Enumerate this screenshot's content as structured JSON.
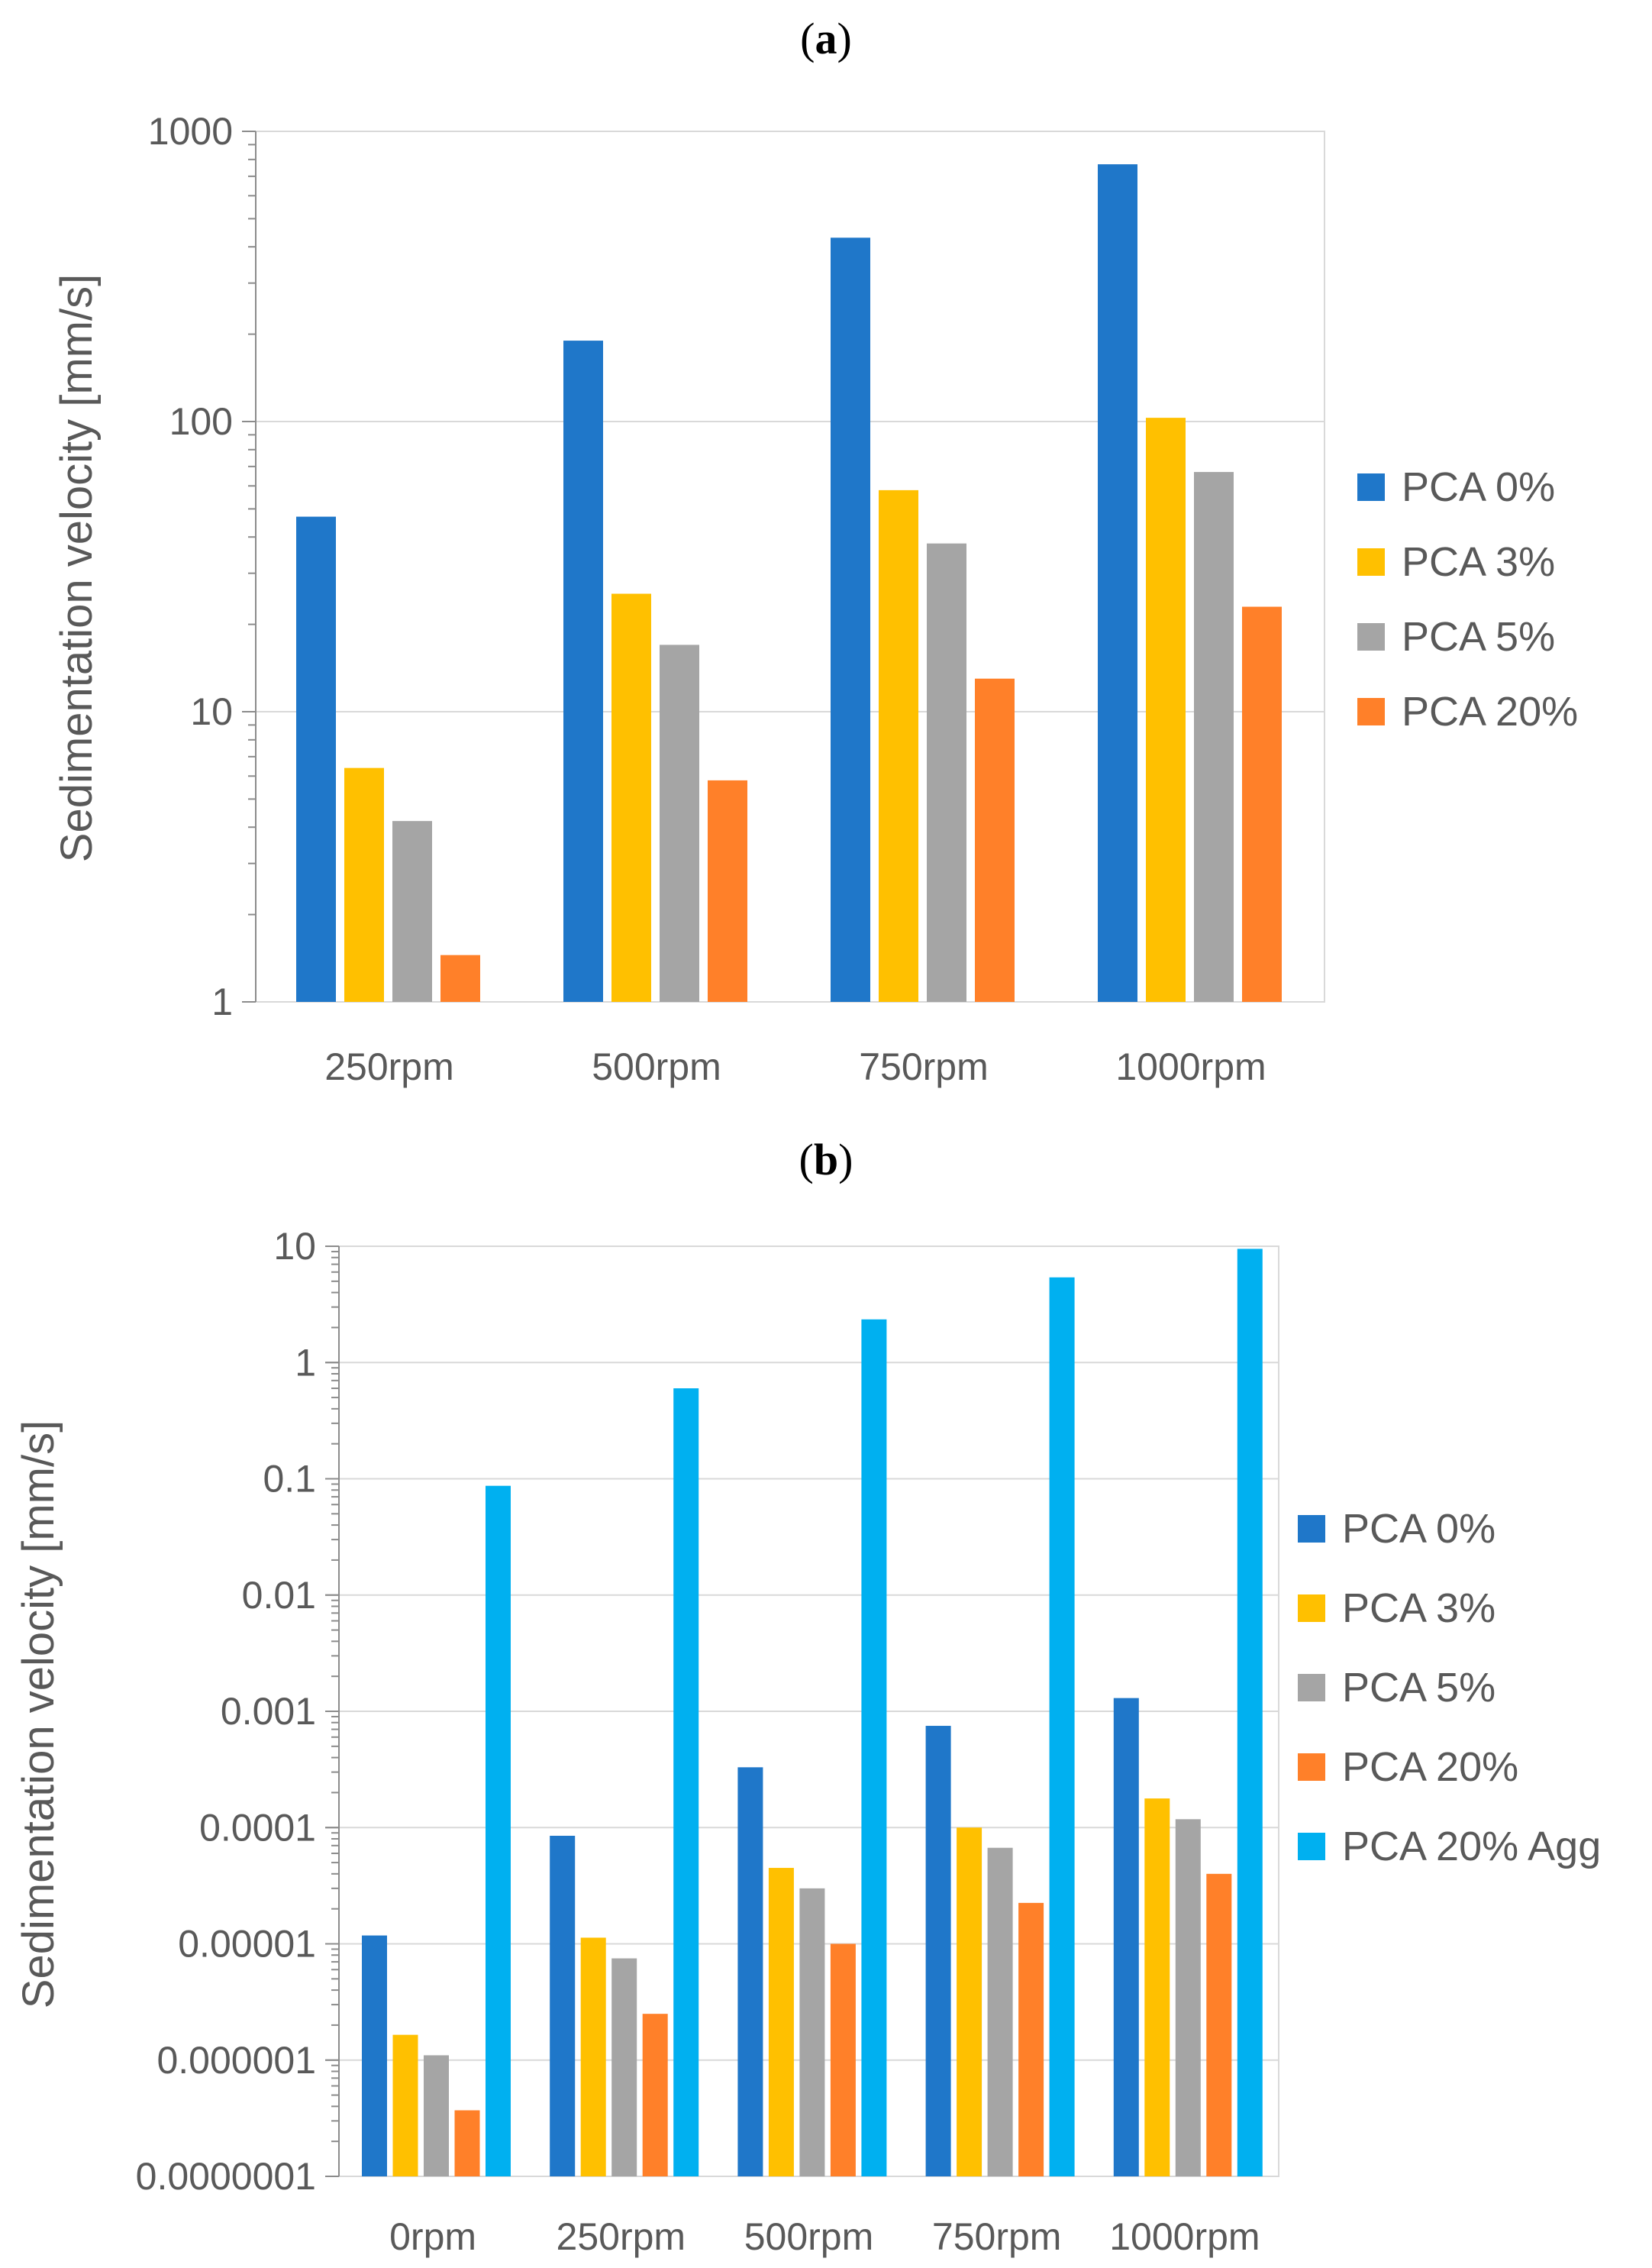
{
  "chart_data": [
    {
      "panel_label": "a",
      "type": "bar",
      "ylabel": "Sedimentation velocity [mm/s]",
      "xlabel": "",
      "yscale": "log",
      "ylim": [
        1,
        1000
      ],
      "ytick_labels": [
        "1",
        "10",
        "100",
        "1000"
      ],
      "ytick_values": [
        1,
        10,
        100,
        1000
      ],
      "categories": [
        "250rpm",
        "500rpm",
        "750rpm",
        "1000rpm"
      ],
      "series": [
        {
          "name": "PCA 0%",
          "color": "#1f77c9",
          "values": [
            47,
            190,
            430,
            770
          ]
        },
        {
          "name": "PCA 3%",
          "color": "#ffc000",
          "values": [
            6.4,
            25.5,
            58,
            103
          ]
        },
        {
          "name": "PCA 5%",
          "color": "#a5a5a5",
          "values": [
            4.2,
            17,
            38,
            67
          ]
        },
        {
          "name": "PCA 20%",
          "color": "#ff8029",
          "values": [
            1.45,
            5.8,
            13,
            23
          ]
        }
      ],
      "grid": true,
      "legend": "right"
    },
    {
      "panel_label": "b",
      "type": "bar",
      "ylabel": "Sedimentation velocity [mm/s]",
      "xlabel": "",
      "yscale": "log",
      "ylim": [
        1e-07,
        10
      ],
      "ytick_labels": [
        "0.0000001",
        "0.000001",
        "0.00001",
        "0.0001",
        "0.001",
        "0.01",
        "0.1",
        "1",
        "10"
      ],
      "ytick_values": [
        1e-07,
        1e-06,
        1e-05,
        0.0001,
        0.001,
        0.01,
        0.1,
        1,
        10
      ],
      "categories": [
        "0rpm",
        "250rpm",
        "500rpm",
        "750rpm",
        "1000rpm"
      ],
      "series": [
        {
          "name": "PCA 0%",
          "color": "#1f77c9",
          "values": [
            1.18e-05,
            8.5e-05,
            0.00033,
            0.00075,
            0.0013
          ]
        },
        {
          "name": "PCA 3%",
          "color": "#ffc000",
          "values": [
            1.65e-06,
            1.13e-05,
            4.5e-05,
            0.0001,
            0.000178
          ]
        },
        {
          "name": "PCA 5%",
          "color": "#a5a5a5",
          "values": [
            1.1e-06,
            7.5e-06,
            3e-05,
            6.7e-05,
            0.000118
          ]
        },
        {
          "name": "PCA 20%",
          "color": "#ff8029",
          "values": [
            3.7e-07,
            2.5e-06,
            1e-05,
            2.25e-05,
            4e-05
          ]
        },
        {
          "name": "PCA 20% Agg",
          "color": "#00b0f0",
          "values": [
            0.087,
            0.6,
            2.35,
            5.4,
            9.5
          ]
        }
      ],
      "grid": true,
      "legend": "right"
    }
  ]
}
